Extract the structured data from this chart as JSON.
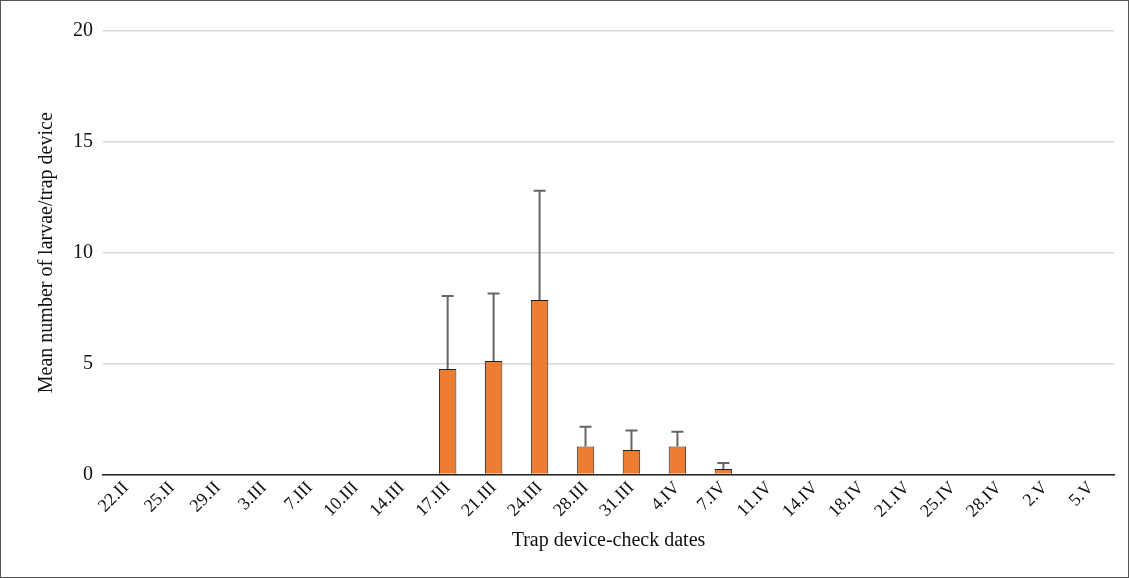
{
  "chart_data": {
    "type": "bar",
    "xlabel": "Trap device-check dates",
    "ylabel": "Mean number of larvae/trap device",
    "categories": [
      "22.II",
      "25.II",
      "29.II",
      "3.III",
      "7.III",
      "10.III",
      "14.III",
      "17.III",
      "21.III",
      "24.III",
      "28.III",
      "31.III",
      "4.IV",
      "7.IV",
      "11.IV",
      "14.IV",
      "18.IV",
      "21.IV",
      "25.IV",
      "28.IV",
      "2.V",
      "5.V"
    ],
    "series": [
      {
        "color": "#ed7d31",
        "values": [
          0,
          0,
          0,
          0,
          0,
          0,
          0,
          4.75,
          5.12,
          7.87,
          1.26,
          1.1,
          1.26,
          0.24,
          0,
          0,
          0,
          0,
          0,
          0,
          0,
          0
        ],
        "errors": [
          null,
          null,
          null,
          null,
          null,
          null,
          null,
          3.3,
          3.04,
          4.92,
          0.89,
          0.88,
          0.66,
          0.27,
          null,
          null,
          null,
          null,
          null,
          null,
          null,
          null
        ]
      }
    ],
    "ylim": [
      0,
      20
    ],
    "yticks": [
      0,
      5,
      10,
      15,
      20
    ],
    "grid": "y",
    "legend": false
  }
}
